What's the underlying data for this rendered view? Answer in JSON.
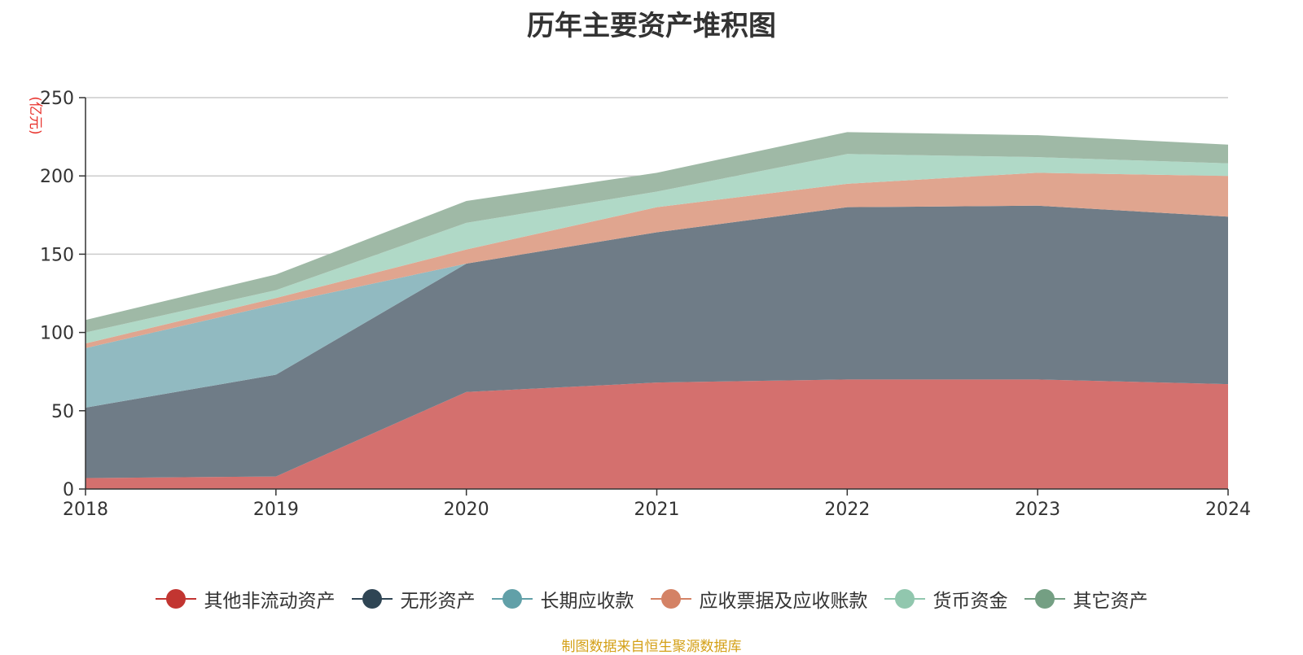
{
  "chart_data": {
    "type": "area",
    "title": "历年主要资产堆积图",
    "unit_label": "(亿元)",
    "stacked": true,
    "x": [
      "2018",
      "2019",
      "2020",
      "2021",
      "2022",
      "2023",
      "2024"
    ],
    "ylim": [
      0,
      250
    ],
    "yticks": [
      "0",
      "50",
      "100",
      "150",
      "200",
      "250"
    ],
    "grid": true,
    "legend_position": "bottom",
    "series": [
      {
        "name": "其他非流动资产",
        "color": "#c23531",
        "fill": "#d4706e",
        "values": [
          7,
          8,
          62,
          68,
          70,
          70,
          67
        ]
      },
      {
        "name": "无形资产",
        "color": "#2f4554",
        "fill": "#6f7c87",
        "values": [
          45,
          65,
          82,
          96,
          110,
          111,
          107
        ]
      },
      {
        "name": "长期应收款",
        "color": "#61a0a8",
        "fill": "#91bac1",
        "values": [
          38,
          45,
          0,
          0,
          0,
          0,
          0
        ]
      },
      {
        "name": "应收票据及应收账款",
        "color": "#d48265",
        "fill": "#e0a58f",
        "values": [
          3,
          4,
          9,
          16,
          15,
          21,
          26
        ]
      },
      {
        "name": "货币资金",
        "color": "#91c7ae",
        "fill": "#b0d9c7",
        "values": [
          7,
          5,
          17,
          10,
          19,
          10,
          8
        ]
      },
      {
        "name": "其它资产",
        "color": "#749f83",
        "fill": "#9fb9a6",
        "values": [
          8,
          10,
          14,
          12,
          14,
          14,
          12
        ]
      }
    ]
  },
  "source_note": "制图数据来自恒生聚源数据库"
}
